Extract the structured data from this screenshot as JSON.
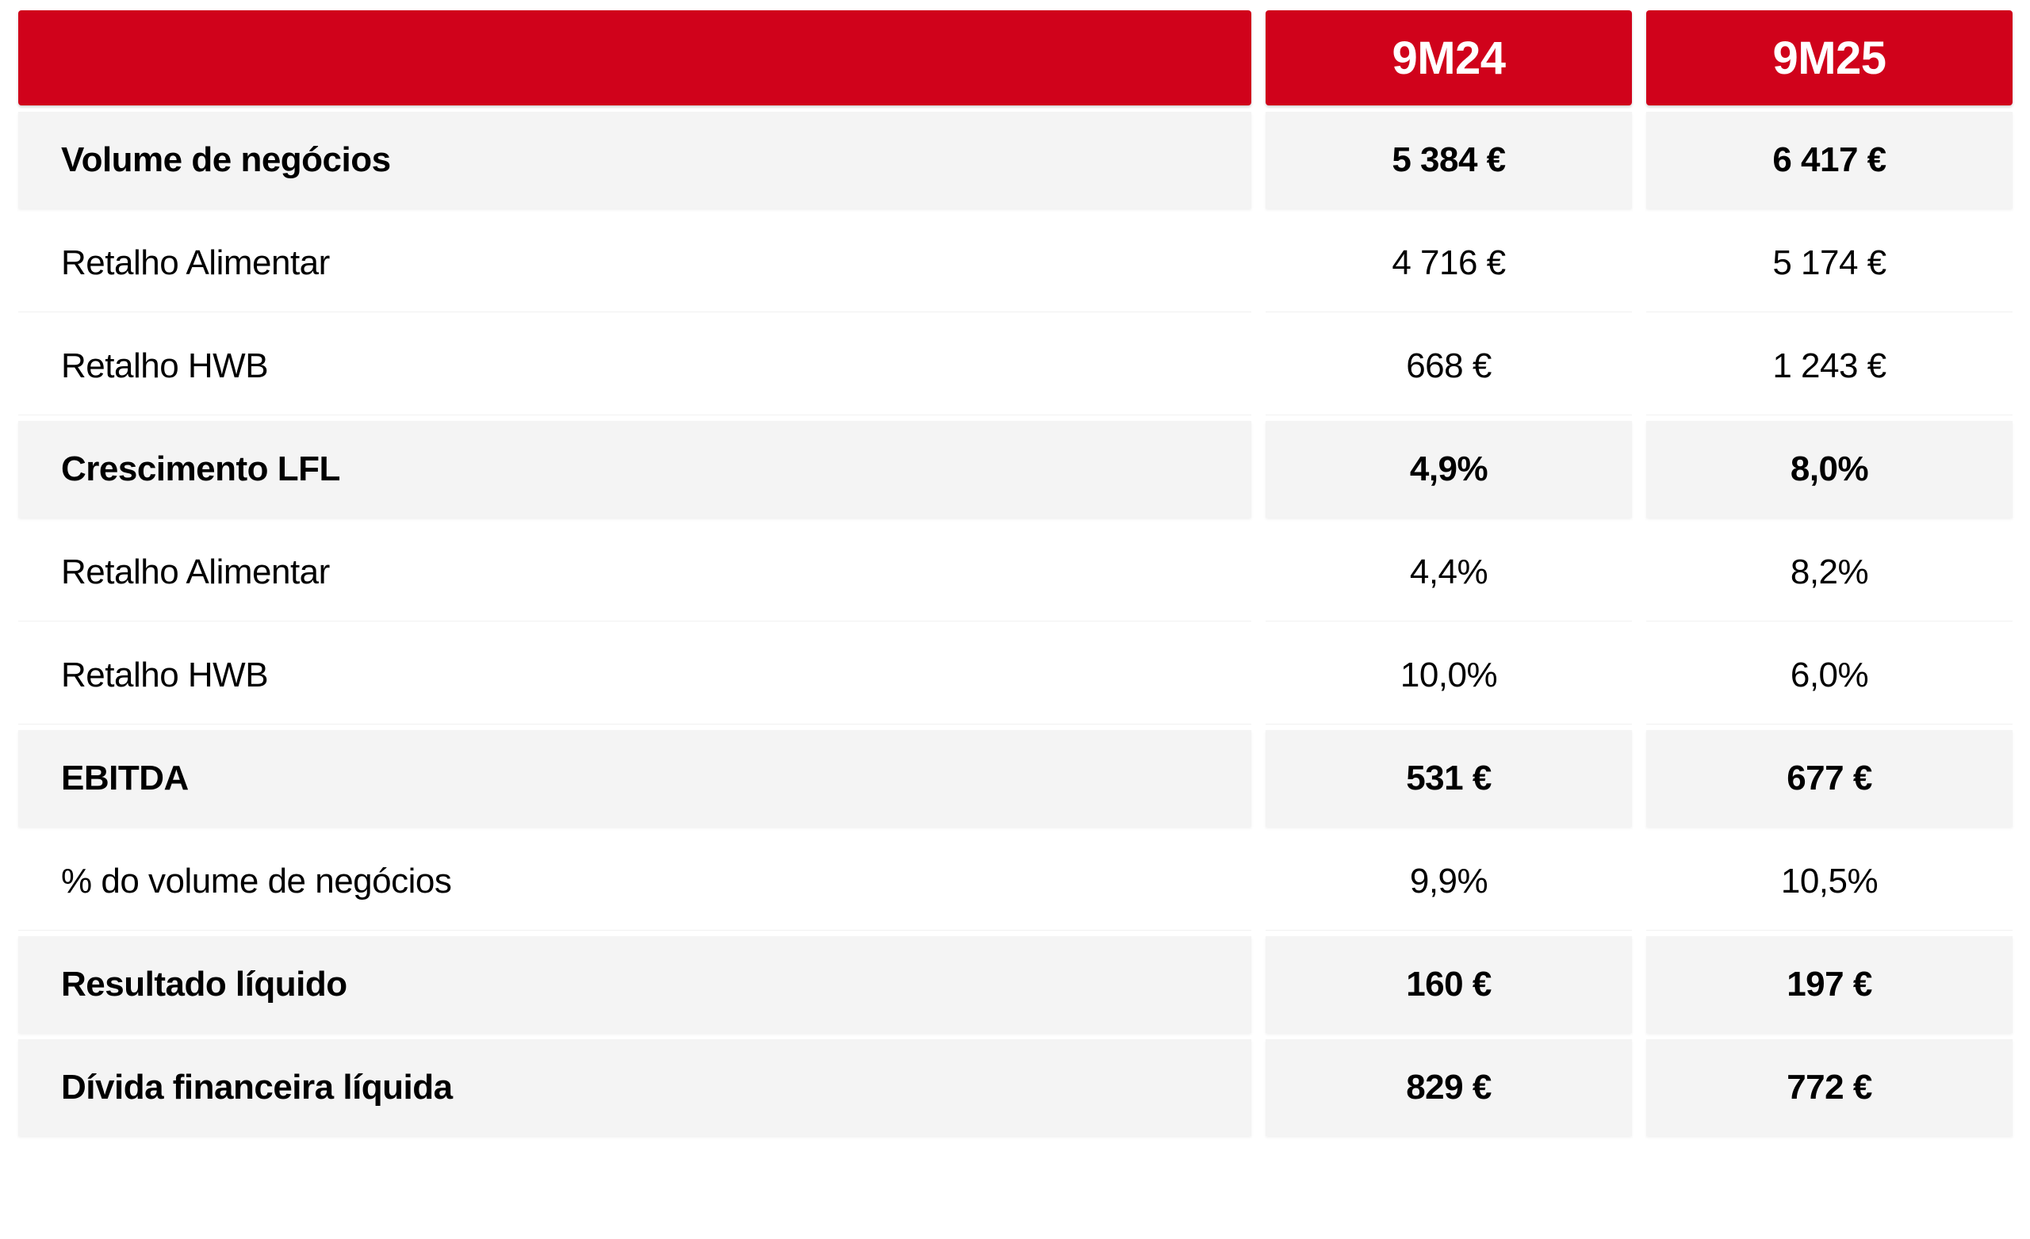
{
  "header": {
    "col1": "9M24",
    "col2": "9M25"
  },
  "rows": [
    {
      "label": "Volume de negócios",
      "v1": "5 384 €",
      "v2": "6 417 €",
      "bold": true
    },
    {
      "label": "Retalho Alimentar",
      "v1": "4 716 €",
      "v2": "5 174 €",
      "bold": false
    },
    {
      "label": "Retalho HWB",
      "v1": "668 €",
      "v2": "1 243 €",
      "bold": false
    },
    {
      "label": "Crescimento LFL",
      "v1": "4,9%",
      "v2": "8,0%",
      "bold": true
    },
    {
      "label": "Retalho Alimentar",
      "v1": "4,4%",
      "v2": "8,2%",
      "bold": false
    },
    {
      "label": "Retalho HWB",
      "v1": "10,0%",
      "v2": "6,0%",
      "bold": false
    },
    {
      "label": "EBITDA",
      "v1": "531 €",
      "v2": "677 €",
      "bold": true
    },
    {
      "label": "% do volume de negócios",
      "v1": "9,9%",
      "v2": "10,5%",
      "bold": false
    },
    {
      "label": "Resultado líquido",
      "v1": "160 €",
      "v2": "197 €",
      "bold": true
    },
    {
      "label": "Dívida financeira líquida",
      "v1": "829 €",
      "v2": "772 €",
      "bold": true
    }
  ],
  "colors": {
    "header_red": "#d0021b",
    "bold_row_bg": "#f4f4f4"
  }
}
